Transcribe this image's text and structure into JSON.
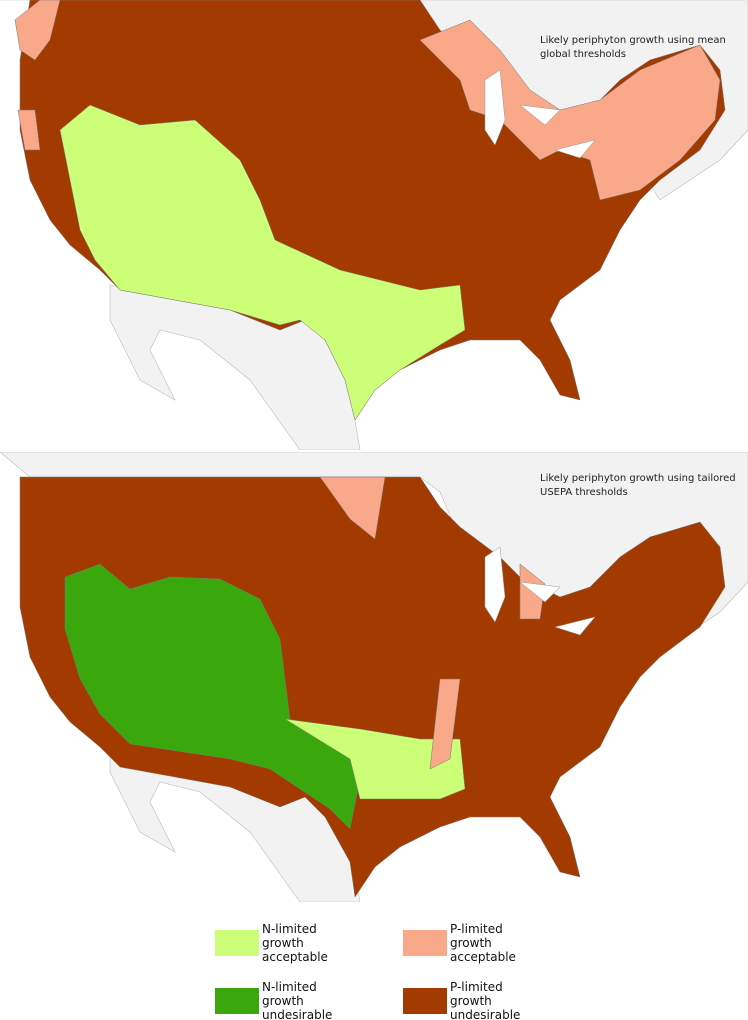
{
  "maps": [
    {
      "title": "Likely periphyton growth using mean global thresholds"
    },
    {
      "title": "Likely periphyton growth using tailored USEPA thresholds"
    }
  ],
  "legend": [
    {
      "label": "N-limited growth acceptable",
      "color": "#ccff77"
    },
    {
      "label": "P-limited growth acceptable",
      "color": "#f9a98a"
    },
    {
      "label": "N-limited growth undesirable",
      "color": "#3aa80c"
    },
    {
      "label": "P-limited growth undesirable",
      "color": "#a33a00"
    }
  ]
}
